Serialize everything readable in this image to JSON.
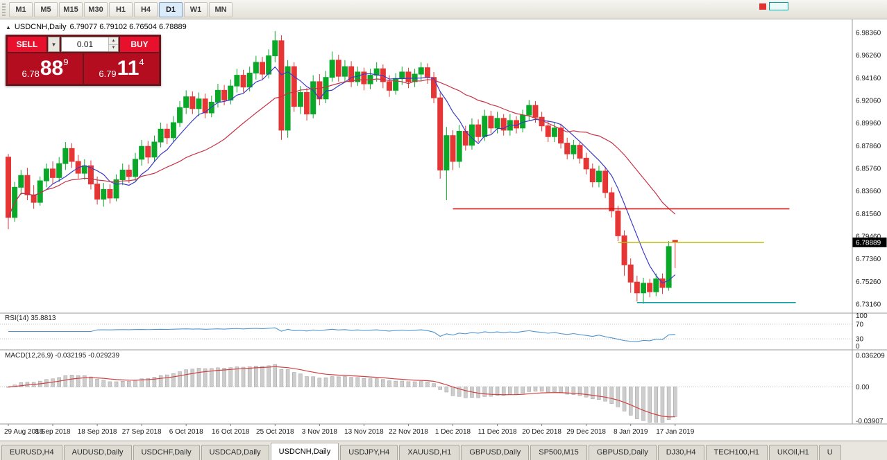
{
  "toolbar": {
    "timeframes": [
      {
        "label": "M1",
        "active": false
      },
      {
        "label": "M5",
        "active": false
      },
      {
        "label": "M15",
        "active": false
      },
      {
        "label": "M30",
        "active": false
      },
      {
        "label": "H1",
        "active": false
      },
      {
        "label": "H4",
        "active": false
      },
      {
        "label": "D1",
        "active": true
      },
      {
        "label": "W1",
        "active": false
      },
      {
        "label": "MN",
        "active": false
      }
    ]
  },
  "chart": {
    "title_symbol": "USDCNH,Daily",
    "title_ohlc": "6.79077 6.79102 6.76504 6.78889"
  },
  "trade_widget": {
    "sell_label": "SELL",
    "buy_label": "BUY",
    "volume": "0.01",
    "sell_small": "6.78",
    "sell_big": "88",
    "sell_sup": "9",
    "buy_small": "6.79",
    "buy_big": "11",
    "buy_sup": "4"
  },
  "chart_data": {
    "type": "candlestick",
    "symbol": "USDCNH",
    "timeframe": "Daily",
    "current_price": "6.78889",
    "colors": {
      "up": "#0aa828",
      "down": "#e53535",
      "ma_fast": "#3b3bc8",
      "ma_slow": "#c83246",
      "rsi": "#4f94cd",
      "macd_hist_fill": "#cdcdcd",
      "macd_hist_stroke": "#9e9e9e",
      "price_tag_bg": "#000000",
      "price_tag_text": "#ffffff"
    },
    "y_axis_labels": [
      "6.98360",
      "6.96260",
      "6.94160",
      "6.92060",
      "6.89960",
      "6.87860",
      "6.85760",
      "6.83660",
      "6.81560",
      "6.79460",
      "6.77360",
      "6.75260",
      "6.73160"
    ],
    "x_labels": [
      {
        "bar": 0,
        "label": "29 Aug 2018"
      },
      {
        "bar": 7,
        "label": "8 Sep 2018"
      },
      {
        "bar": 14,
        "label": "18 Sep 2018"
      },
      {
        "bar": 21,
        "label": "27 Sep 2018"
      },
      {
        "bar": 28,
        "label": "6 Oct 2018"
      },
      {
        "bar": 35,
        "label": "16 Oct 2018"
      },
      {
        "bar": 42,
        "label": "25 Oct 2018"
      },
      {
        "bar": 49,
        "label": "3 Nov 2018"
      },
      {
        "bar": 56,
        "label": "13 Nov 2018"
      },
      {
        "bar": 63,
        "label": "22 Nov 2018"
      },
      {
        "bar": 70,
        "label": "1 Dec 2018"
      },
      {
        "bar": 77,
        "label": "11 Dec 2018"
      },
      {
        "bar": 84,
        "label": "20 Dec 2018"
      },
      {
        "bar": 91,
        "label": "29 Dec 2018"
      },
      {
        "bar": 98,
        "label": "8 Jan 2019"
      },
      {
        "bar": 105,
        "label": "17 Jan 2019"
      }
    ],
    "lines": [
      {
        "name": "hline-red",
        "color": "#dd0000",
        "price": 6.82,
        "from_bar": 70,
        "to_bar": 123
      },
      {
        "name": "hline-yellow",
        "color": "#b9b914",
        "price": 6.78889,
        "from_bar": 96,
        "to_bar": 119
      },
      {
        "name": "hline-teal",
        "color": "#00a5a5",
        "price": 6.733,
        "from_bar": 99,
        "to_bar": 124
      }
    ],
    "moving_averages": [
      {
        "name": "ma-fast",
        "period": 7,
        "color": "#3b3bc8"
      },
      {
        "name": "ma-slow",
        "period": 21,
        "color": "#c83246"
      }
    ],
    "indicators": {
      "rsi": {
        "label": "RSI(14) 35.8813",
        "period": 14,
        "levels": [
          100,
          70,
          30,
          0
        ],
        "last_value": 35.8813
      },
      "macd": {
        "label": "MACD(12,26,9) -0.032195 -0.029239",
        "fast": 12,
        "slow": 26,
        "signal": 9,
        "last_macd": -0.032195,
        "last_signal": -0.029239,
        "axis_labels": [
          {
            "value": 0.036209,
            "label": "0.036209"
          },
          {
            "value": 0,
            "label": "0.00"
          },
          {
            "value": -0.03907,
            "label": "-0.03907"
          }
        ]
      }
    },
    "ohlc": [
      [
        6.868,
        6.871,
        6.801,
        6.812
      ],
      [
        6.812,
        6.845,
        6.808,
        6.84
      ],
      [
        6.84,
        6.856,
        6.833,
        6.851
      ],
      [
        6.851,
        6.858,
        6.828,
        6.833
      ],
      [
        6.833,
        6.842,
        6.82,
        6.826
      ],
      [
        6.826,
        6.85,
        6.823,
        6.846
      ],
      [
        6.846,
        6.862,
        6.84,
        6.857
      ],
      [
        6.857,
        6.864,
        6.843,
        6.849
      ],
      [
        6.849,
        6.868,
        6.845,
        6.862
      ],
      [
        6.862,
        6.882,
        6.856,
        6.876
      ],
      [
        6.876,
        6.881,
        6.858,
        6.864
      ],
      [
        6.864,
        6.87,
        6.848,
        6.853
      ],
      [
        6.853,
        6.866,
        6.847,
        6.86
      ],
      [
        6.86,
        6.865,
        6.838,
        6.843
      ],
      [
        6.843,
        6.85,
        6.824,
        6.829
      ],
      [
        6.829,
        6.844,
        6.822,
        6.838
      ],
      [
        6.838,
        6.843,
        6.825,
        6.83
      ],
      [
        6.83,
        6.852,
        6.827,
        6.847
      ],
      [
        6.847,
        6.862,
        6.842,
        6.856
      ],
      [
        6.856,
        6.861,
        6.844,
        6.85
      ],
      [
        6.85,
        6.872,
        6.846,
        6.866
      ],
      [
        6.866,
        6.884,
        6.86,
        6.878
      ],
      [
        6.878,
        6.883,
        6.862,
        6.868
      ],
      [
        6.868,
        6.888,
        6.864,
        6.882
      ],
      [
        6.882,
        6.9,
        6.877,
        6.894
      ],
      [
        6.894,
        6.899,
        6.88,
        6.886
      ],
      [
        6.886,
        6.906,
        6.882,
        6.9
      ],
      [
        6.9,
        6.92,
        6.896,
        6.914
      ],
      [
        6.914,
        6.93,
        6.908,
        6.924
      ],
      [
        6.924,
        6.929,
        6.908,
        6.913
      ],
      [
        6.913,
        6.928,
        6.906,
        6.922
      ],
      [
        6.922,
        6.927,
        6.904,
        6.909
      ],
      [
        6.909,
        6.925,
        6.905,
        6.919
      ],
      [
        6.919,
        6.936,
        6.914,
        6.93
      ],
      [
        6.93,
        6.935,
        6.916,
        6.921
      ],
      [
        6.921,
        6.94,
        6.917,
        6.934
      ],
      [
        6.934,
        6.95,
        6.928,
        6.944
      ],
      [
        6.944,
        6.949,
        6.928,
        6.933
      ],
      [
        6.933,
        6.952,
        6.929,
        6.946
      ],
      [
        6.946,
        6.962,
        6.94,
        6.956
      ],
      [
        6.956,
        6.961,
        6.94,
        6.945
      ],
      [
        6.945,
        6.968,
        6.941,
        6.962
      ],
      [
        6.962,
        6.985,
        6.956,
        6.976
      ],
      [
        6.976,
        6.981,
        6.884,
        6.893
      ],
      [
        6.893,
        6.958,
        6.886,
        6.952
      ],
      [
        6.952,
        6.956,
        6.91,
        6.915
      ],
      [
        6.915,
        6.934,
        6.908,
        6.928
      ],
      [
        6.928,
        6.932,
        6.902,
        6.908
      ],
      [
        6.908,
        6.944,
        6.904,
        6.938
      ],
      [
        6.938,
        6.945,
        6.916,
        6.922
      ],
      [
        6.922,
        6.948,
        6.918,
        6.942
      ],
      [
        6.942,
        6.966,
        6.938,
        6.958
      ],
      [
        6.958,
        6.963,
        6.938,
        6.943
      ],
      [
        6.943,
        6.958,
        6.937,
        6.952
      ],
      [
        6.952,
        6.957,
        6.933,
        6.938
      ],
      [
        6.938,
        6.952,
        6.934,
        6.947
      ],
      [
        6.947,
        6.951,
        6.93,
        6.936
      ],
      [
        6.936,
        6.95,
        6.931,
        6.944
      ],
      [
        6.944,
        6.956,
        6.938,
        6.95
      ],
      [
        6.95,
        6.954,
        6.932,
        6.938
      ],
      [
        6.938,
        6.944,
        6.924,
        6.93
      ],
      [
        6.93,
        6.946,
        6.926,
        6.941
      ],
      [
        6.941,
        6.952,
        6.935,
        6.947
      ],
      [
        6.947,
        6.951,
        6.932,
        6.938
      ],
      [
        6.938,
        6.95,
        6.933,
        6.945
      ],
      [
        6.945,
        6.956,
        6.939,
        6.951
      ],
      [
        6.951,
        6.955,
        6.936,
        6.942
      ],
      [
        6.942,
        6.947,
        6.918,
        6.923
      ],
      [
        6.923,
        6.928,
        6.848,
        6.856
      ],
      [
        6.856,
        6.896,
        6.828,
        6.888
      ],
      [
        6.888,
        6.893,
        6.856,
        6.864
      ],
      [
        6.864,
        6.898,
        6.858,
        6.892
      ],
      [
        6.892,
        6.897,
        6.874,
        6.879
      ],
      [
        6.879,
        6.904,
        6.875,
        6.898
      ],
      [
        6.898,
        6.903,
        6.882,
        6.887
      ],
      [
        6.887,
        6.912,
        6.883,
        6.906
      ],
      [
        6.906,
        6.911,
        6.89,
        6.895
      ],
      [
        6.895,
        6.91,
        6.89,
        6.904
      ],
      [
        6.904,
        6.908,
        6.888,
        6.893
      ],
      [
        6.893,
        6.908,
        6.888,
        6.902
      ],
      [
        6.902,
        6.906,
        6.89,
        6.895
      ],
      [
        6.895,
        6.912,
        6.891,
        6.907
      ],
      [
        6.907,
        6.921,
        6.902,
        6.916
      ],
      [
        6.916,
        6.92,
        6.9,
        6.905
      ],
      [
        6.905,
        6.91,
        6.892,
        6.897
      ],
      [
        6.897,
        6.902,
        6.882,
        6.887
      ],
      [
        6.887,
        6.9,
        6.882,
        6.895
      ],
      [
        6.895,
        6.899,
        6.876,
        6.881
      ],
      [
        6.881,
        6.886,
        6.866,
        6.871
      ],
      [
        6.871,
        6.884,
        6.866,
        6.879
      ],
      [
        6.879,
        6.883,
        6.862,
        6.867
      ],
      [
        6.867,
        6.872,
        6.852,
        6.857
      ],
      [
        6.857,
        6.862,
        6.84,
        6.845
      ],
      [
        6.845,
        6.86,
        6.84,
        6.855
      ],
      [
        6.855,
        6.859,
        6.83,
        6.835
      ],
      [
        6.835,
        6.84,
        6.812,
        6.818
      ],
      [
        6.818,
        6.823,
        6.79,
        6.795
      ],
      [
        6.795,
        6.8,
        6.758,
        6.768
      ],
      [
        6.768,
        6.774,
        6.742,
        6.752
      ],
      [
        6.752,
        6.758,
        6.734,
        6.742
      ],
      [
        6.742,
        6.756,
        6.732,
        6.751
      ],
      [
        6.751,
        6.755,
        6.738,
        6.743
      ],
      [
        6.743,
        6.76,
        6.739,
        6.755
      ],
      [
        6.755,
        6.76,
        6.741,
        6.747
      ],
      [
        6.747,
        6.79,
        6.744,
        6.785
      ],
      [
        6.79077,
        6.79102,
        6.76504,
        6.78889
      ]
    ]
  },
  "tabs": [
    {
      "label": "EURUSD,H4",
      "active": false
    },
    {
      "label": "AUDUSD,Daily",
      "active": false
    },
    {
      "label": "USDCHF,Daily",
      "active": false
    },
    {
      "label": "USDCAD,Daily",
      "active": false
    },
    {
      "label": "USDCNH,Daily",
      "active": true
    },
    {
      "label": "USDJPY,H4",
      "active": false
    },
    {
      "label": "XAUUSD,H1",
      "active": false
    },
    {
      "label": "GBPUSD,Daily",
      "active": false
    },
    {
      "label": "SP500,M15",
      "active": false
    },
    {
      "label": "GBPUSD,Daily",
      "active": false
    },
    {
      "label": "DJ30,H4",
      "active": false
    },
    {
      "label": "TECH100,H1",
      "active": false
    },
    {
      "label": "UKOil,H1",
      "active": false
    },
    {
      "label": "U",
      "active": false
    }
  ]
}
